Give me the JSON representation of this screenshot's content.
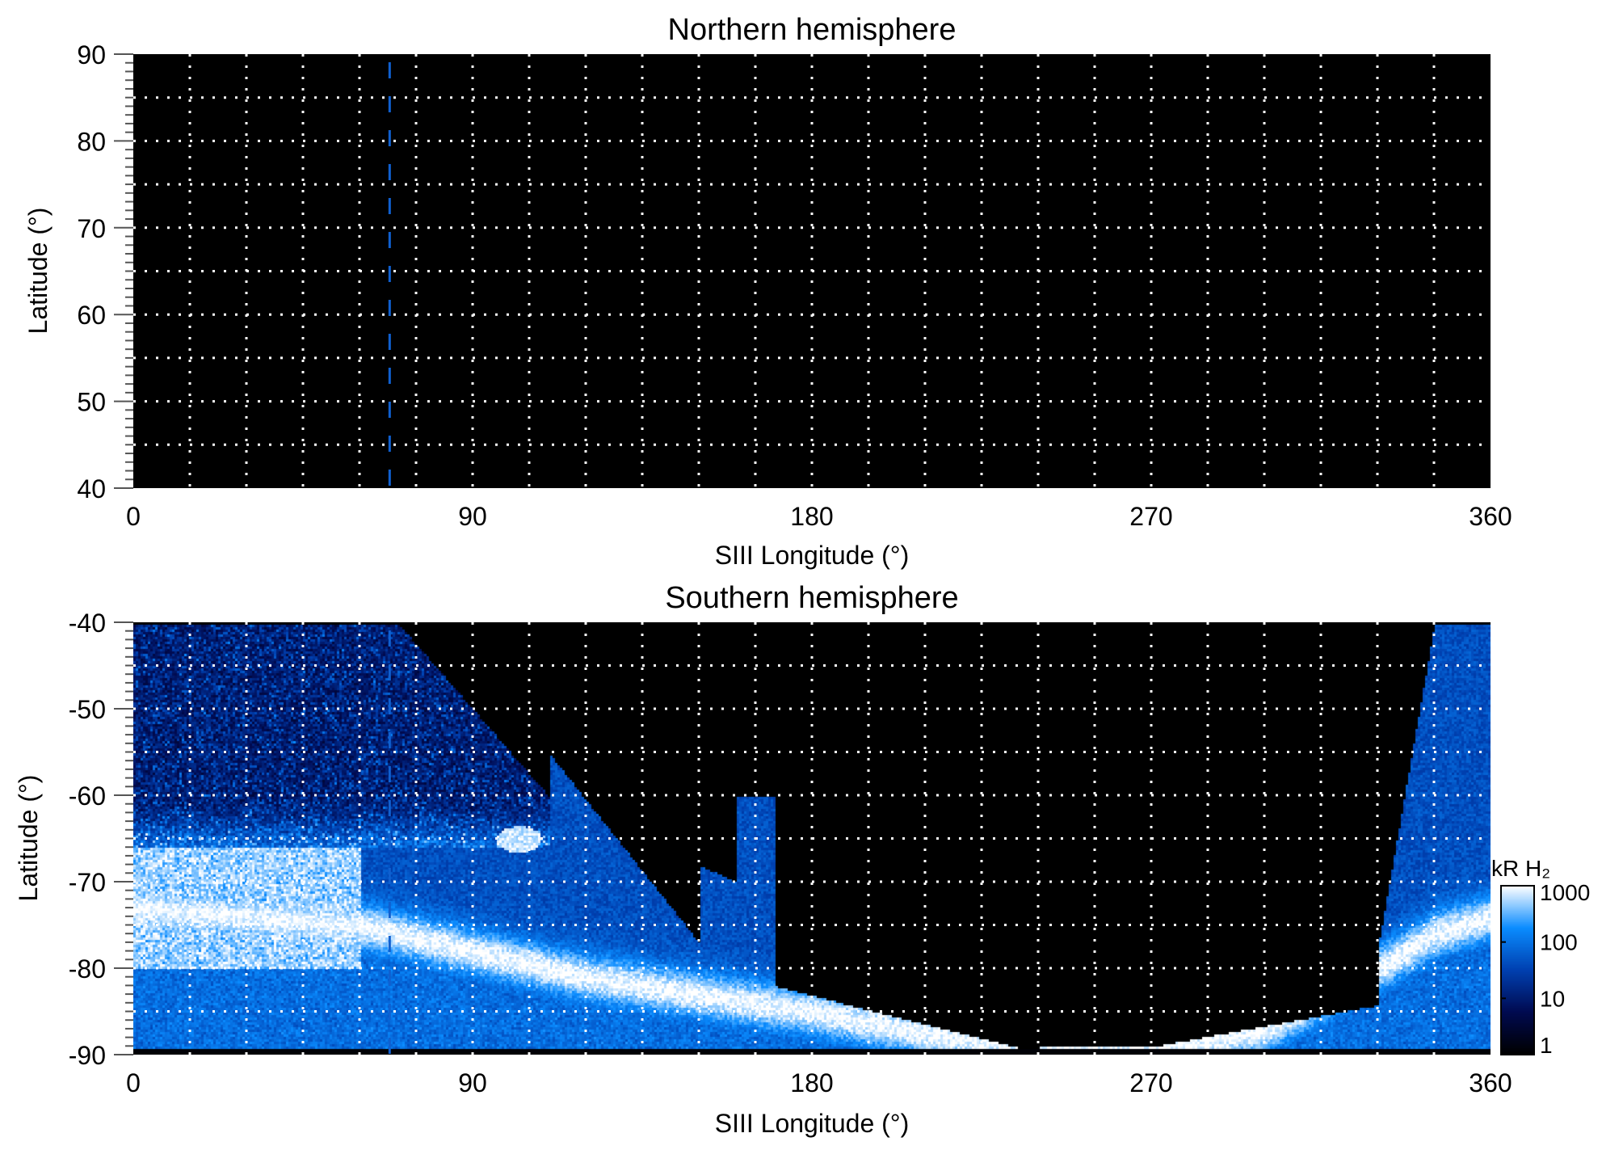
{
  "chart_data": [
    {
      "type": "heatmap",
      "title": "Northern hemisphere",
      "xlabel": "SIII Longitude (°)",
      "ylabel": "Latitude (°)",
      "xlim": [
        0,
        360
      ],
      "ylim": [
        40,
        90
      ],
      "xticks": [
        "0",
        "90",
        "180",
        "270",
        "360"
      ],
      "yticks": [
        "40",
        "50",
        "60",
        "70",
        "80",
        "90"
      ],
      "grid": true,
      "grid_x_step": 15,
      "grid_y_step": 5,
      "marker_longitude": 68,
      "marker_color": "#1060d0",
      "emission": "none"
    },
    {
      "type": "heatmap",
      "title": "Southern hemisphere",
      "xlabel": "SIII Longitude (°)",
      "ylabel": "Latitude (°)",
      "xlim": [
        0,
        360
      ],
      "ylim": [
        -90,
        -40
      ],
      "xticks": [
        "0",
        "90",
        "180",
        "270",
        "360"
      ],
      "yticks": [
        "-90",
        "-80",
        "-70",
        "-60",
        "-50",
        "-40"
      ],
      "grid": true,
      "grid_x_step": 15,
      "grid_y_step": 5,
      "marker_longitude": 68,
      "marker_color": "#1060d0",
      "main_oval": [
        [
          0,
          -73
        ],
        [
          30,
          -74
        ],
        [
          60,
          -75
        ],
        [
          90,
          -78
        ],
        [
          120,
          -81
        ],
        [
          150,
          -83
        ],
        [
          180,
          -85
        ],
        [
          210,
          -87.5
        ],
        [
          240,
          -89
        ],
        [
          270,
          -89.5
        ],
        [
          300,
          -87
        ],
        [
          330,
          -80
        ],
        [
          345,
          -76
        ],
        [
          360,
          -74
        ]
      ],
      "colorbar": {
        "label": "kR H₂",
        "scale": "log",
        "range": [
          1,
          1000
        ],
        "ticks": [
          "1",
          "10",
          "100",
          "1000"
        ],
        "colors": [
          "#000000",
          "#000a50",
          "#0040b0",
          "#0a8cff",
          "#ffffff"
        ]
      }
    }
  ]
}
